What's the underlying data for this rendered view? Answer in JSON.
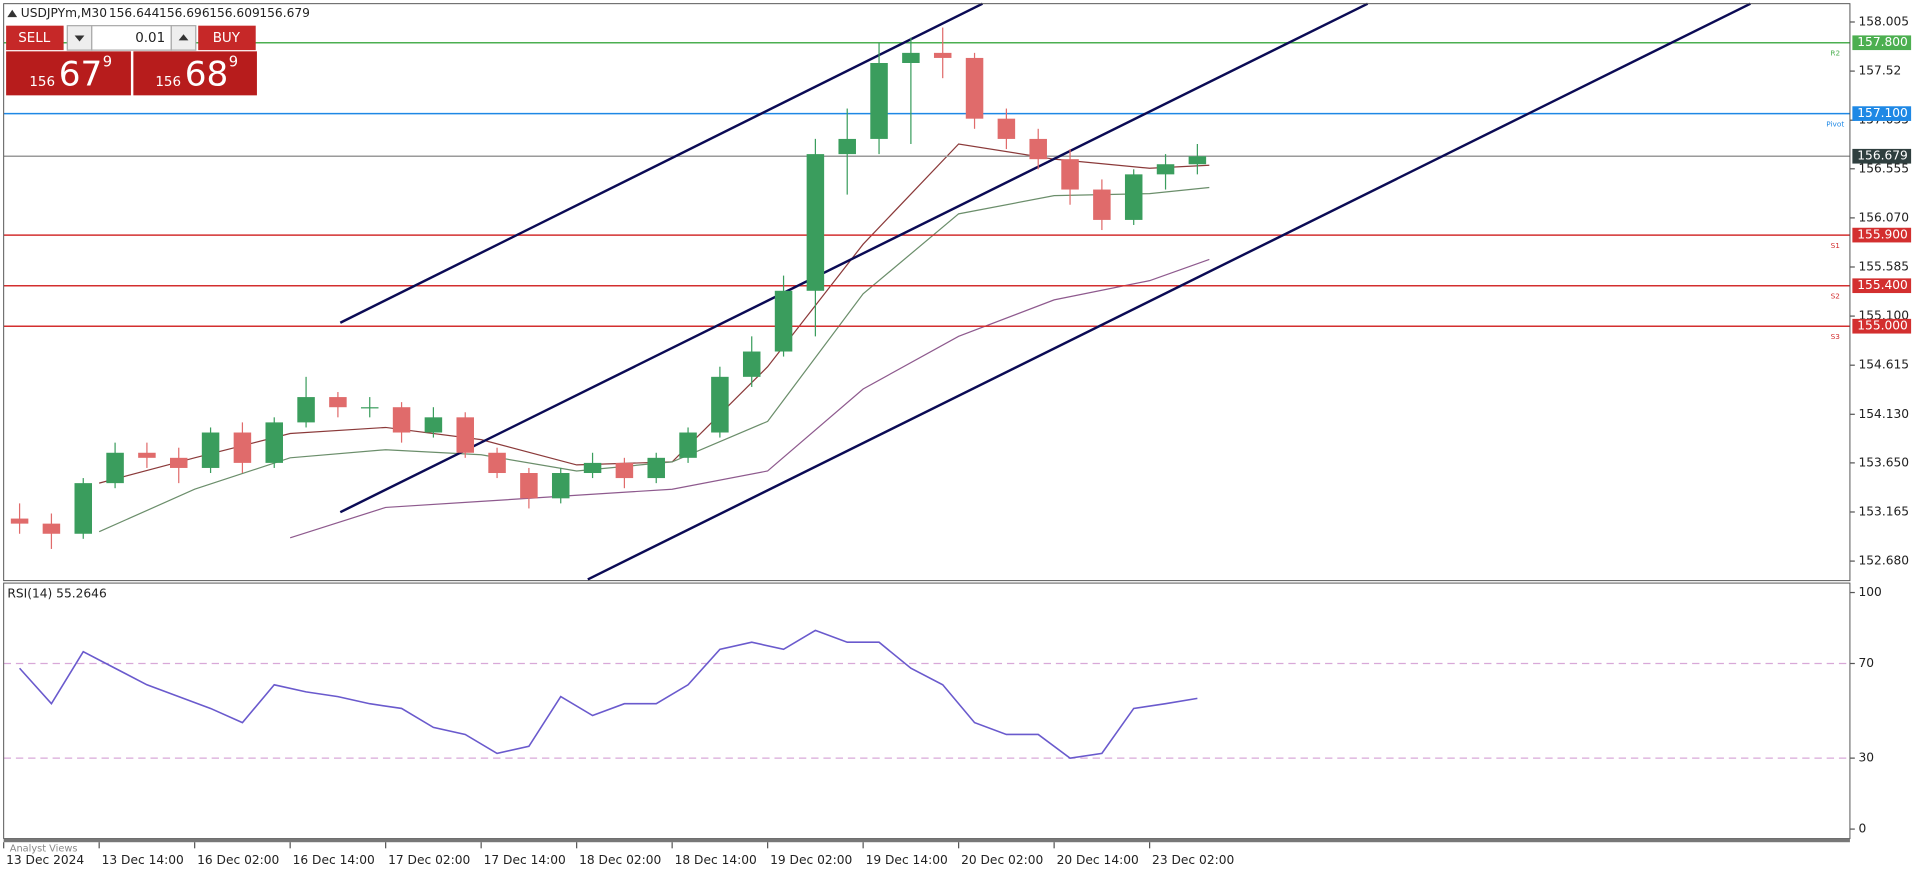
{
  "trade_panel": {
    "sell": "SELL",
    "buy": "BUY",
    "volume": "0.01",
    "bid": {
      "big": "156",
      "mid": "67",
      "small": "9"
    },
    "ask": {
      "big": "156",
      "mid": "68",
      "small": "9"
    }
  },
  "footer": "Analyst Views",
  "chart_data": [
    {
      "type": "candlestick",
      "symbol": "USDJPYm,M30",
      "bar_ohlc": [
        156.644,
        156.696,
        156.609,
        156.679
      ],
      "x": [
        4,
        12,
        20,
        28,
        36,
        44,
        52,
        60,
        68,
        76,
        84,
        92,
        100,
        108,
        116,
        124,
        132,
        140,
        148,
        156,
        164,
        172,
        180,
        188,
        196,
        204,
        212,
        220,
        228,
        236,
        244,
        252,
        260,
        268,
        276,
        284,
        292,
        300
      ],
      "open": [
        153.1,
        153.05,
        152.95,
        153.45,
        153.75,
        153.7,
        153.6,
        153.95,
        153.65,
        154.05,
        154.3,
        154.2,
        154.2,
        153.95,
        154.1,
        153.75,
        153.55,
        153.3,
        153.55,
        153.65,
        153.5,
        153.7,
        153.95,
        154.5,
        154.75,
        155.35,
        156.7,
        156.85,
        157.6,
        157.7,
        157.65,
        157.05,
        156.85,
        156.65,
        156.35,
        156.05,
        156.5,
        156.6
      ],
      "high": [
        153.25,
        153.15,
        153.5,
        153.85,
        153.85,
        153.8,
        154.0,
        154.05,
        154.1,
        154.5,
        154.35,
        154.3,
        154.25,
        154.2,
        154.15,
        153.8,
        153.6,
        153.6,
        153.75,
        153.7,
        153.75,
        154.0,
        154.6,
        154.9,
        155.5,
        156.85,
        157.15,
        157.8,
        157.85,
        157.95,
        157.7,
        157.15,
        156.95,
        156.75,
        156.45,
        156.55,
        156.7,
        156.8
      ],
      "low": [
        152.95,
        152.8,
        152.9,
        153.4,
        153.6,
        153.45,
        153.55,
        153.55,
        153.6,
        154.0,
        154.1,
        154.1,
        153.85,
        153.9,
        153.7,
        153.5,
        153.2,
        153.25,
        153.5,
        153.4,
        153.45,
        153.65,
        153.9,
        154.4,
        154.7,
        154.9,
        156.3,
        156.7,
        156.8,
        157.45,
        156.95,
        156.75,
        156.55,
        156.2,
        155.95,
        156.0,
        156.35,
        156.5
      ],
      "close": [
        153.05,
        152.95,
        153.45,
        153.75,
        153.7,
        153.6,
        153.95,
        153.65,
        154.05,
        154.3,
        154.2,
        154.2,
        153.95,
        154.1,
        153.75,
        153.55,
        153.3,
        153.55,
        153.65,
        153.5,
        153.7,
        153.95,
        154.5,
        154.75,
        155.35,
        156.7,
        156.85,
        157.6,
        157.7,
        157.65,
        157.05,
        156.85,
        156.65,
        156.35,
        156.05,
        156.5,
        156.6,
        156.679
      ],
      "up_color": "#3a9d5d",
      "down_color": "#e06b6b",
      "xlim": [
        0,
        464
      ],
      "xticks": [
        {
          "value": 0,
          "label": "13 Dec 2024"
        },
        {
          "value": 24,
          "label": "13 Dec 14:00"
        },
        {
          "value": 48,
          "label": "16 Dec 02:00"
        },
        {
          "value": 72,
          "label": "16 Dec 14:00"
        },
        {
          "value": 96,
          "label": "17 Dec 02:00"
        },
        {
          "value": 120,
          "label": "17 Dec 14:00"
        },
        {
          "value": 144,
          "label": "18 Dec 02:00"
        },
        {
          "value": 168,
          "label": "18 Dec 14:00"
        },
        {
          "value": 192,
          "label": "19 Dec 02:00"
        },
        {
          "value": 216,
          "label": "19 Dec 14:00"
        },
        {
          "value": 240,
          "label": "20 Dec 02:00"
        },
        {
          "value": 264,
          "label": "20 Dec 14:00"
        },
        {
          "value": 288,
          "label": "23 Dec 02:00"
        }
      ],
      "ylim": [
        152.487,
        158.186
      ],
      "yticks": [
        158.005,
        157.52,
        {
          "value": 157.035,
          "label": "157.035"
        },
        156.555,
        {
          "value": 156.07,
          "label": "156.070"
        },
        155.585,
        {
          "value": 155.1,
          "label": "155.100"
        },
        154.615,
        {
          "value": 154.13,
          "label": "154.130"
        },
        {
          "value": 153.65,
          "label": "153.650"
        },
        153.165,
        {
          "value": 152.68,
          "label": "152.680"
        }
      ],
      "moving_averages": [
        {
          "color": "#8b3a3a",
          "x": [
            24,
            48,
            72,
            96,
            120,
            144,
            168,
            192,
            216,
            240,
            264,
            288,
            303
          ],
          "values": [
            153.45,
            153.7,
            153.94,
            154.0,
            153.88,
            153.63,
            153.66,
            154.6,
            155.81,
            156.8,
            156.65,
            156.56,
            156.59
          ]
        },
        {
          "color": "#6b8e6b",
          "x": [
            24,
            48,
            72,
            96,
            120,
            144,
            168,
            192,
            216,
            240,
            264,
            288,
            303
          ],
          "values": [
            152.97,
            153.39,
            153.7,
            153.78,
            153.73,
            153.57,
            153.66,
            154.06,
            155.32,
            156.11,
            156.29,
            156.31,
            156.37
          ]
        },
        {
          "color": "#8e5a8e",
          "x": [
            72,
            96,
            120,
            144,
            168,
            192,
            216,
            240,
            264,
            288,
            303
          ],
          "values": [
            152.91,
            153.21,
            153.27,
            153.33,
            153.39,
            153.57,
            154.38,
            154.9,
            155.26,
            155.45,
            155.66
          ]
        }
      ],
      "levels": [
        {
          "name": "R2",
          "value": 157.8,
          "label": "157.800",
          "color": "#4caf50"
        },
        {
          "name": "Pivot",
          "value": 157.1,
          "label": "157.100",
          "color": "#1e88e5"
        },
        {
          "value": 156.679,
          "color": "#9a9a9a",
          "tag_color": "#2f3f3f"
        },
        {
          "name": "S1",
          "value": 155.9,
          "label": "155.900",
          "color": "#d32f2f"
        },
        {
          "name": "S2",
          "value": 155.4,
          "label": "155.400",
          "color": "#d32f2f"
        },
        {
          "name": "S3",
          "value": 155.0,
          "label": "155.000",
          "color": "#d32f2f"
        }
      ],
      "trend_color": "#0b0b55",
      "trend_lines": [
        {
          "x": [
            84.6,
            246
          ],
          "y": [
            155.034,
            158.186
          ]
        },
        {
          "x": [
            84.6,
            342.8
          ],
          "y": [
            153.163,
            158.186
          ]
        },
        {
          "x": [
            146.8,
            439
          ],
          "y": [
            152.499,
            158.186
          ]
        }
      ]
    },
    {
      "type": "line",
      "title": "RSI(14) 55.2646",
      "color": "#6a5acd",
      "x": [
        4,
        12,
        20,
        28,
        36,
        44,
        52,
        60,
        68,
        76,
        84,
        92,
        100,
        108,
        116,
        124,
        132,
        140,
        148,
        156,
        164,
        172,
        180,
        188,
        196,
        204,
        212,
        220,
        228,
        236,
        244,
        252,
        260,
        268,
        276,
        284,
        292,
        300
      ],
      "values": [
        68,
        53,
        75,
        68,
        61,
        56,
        51,
        45,
        61,
        58,
        56,
        53,
        51,
        43,
        40,
        32,
        35,
        56,
        48,
        53,
        53,
        61,
        76,
        79,
        76,
        84,
        79,
        79,
        68,
        61,
        45,
        40,
        40,
        30,
        32,
        51,
        53,
        55.2646
      ],
      "xlim": [
        0,
        464
      ],
      "ylim": [
        -4,
        104
      ],
      "yticks": [
        0,
        30,
        70,
        100
      ],
      "levels": [
        30,
        70
      ],
      "level_color": "#d8a8d8"
    }
  ]
}
